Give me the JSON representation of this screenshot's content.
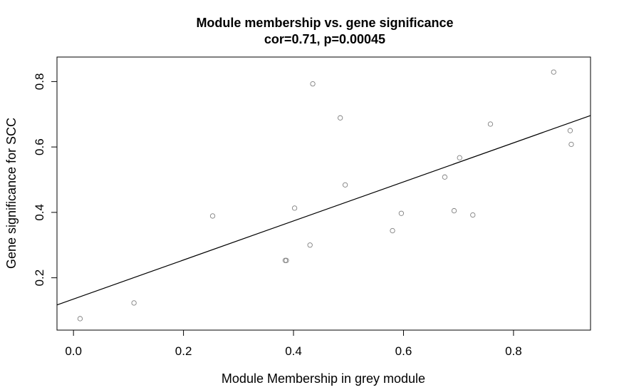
{
  "chart_data": {
    "type": "scatter",
    "title": "Module membership vs. gene significance",
    "subtitle": "cor=0.71, p=0.00045",
    "xlabel": "Module Membership in grey module",
    "ylabel": "Gene significance for SCC",
    "xlim": [
      -0.03,
      0.94
    ],
    "ylim": [
      0.04,
      0.875
    ],
    "xticks": [
      0.0,
      0.2,
      0.4,
      0.6,
      0.8
    ],
    "xtick_labels": [
      "0.0",
      "0.2",
      "0.4",
      "0.6",
      "0.8"
    ],
    "yticks": [
      0.2,
      0.4,
      0.6,
      0.8
    ],
    "ytick_labels": [
      "0.2",
      "0.4",
      "0.6",
      "0.8"
    ],
    "grid": false,
    "legend": "none",
    "marker": "open-circle",
    "point_color": "#808080",
    "line_color": "#000000",
    "points": [
      {
        "x": 0.012,
        "y": 0.075
      },
      {
        "x": 0.11,
        "y": 0.123
      },
      {
        "x": 0.253,
        "y": 0.389
      },
      {
        "x": 0.385,
        "y": 0.253
      },
      {
        "x": 0.387,
        "y": 0.253
      },
      {
        "x": 0.402,
        "y": 0.413
      },
      {
        "x": 0.43,
        "y": 0.3
      },
      {
        "x": 0.435,
        "y": 0.793
      },
      {
        "x": 0.485,
        "y": 0.689
      },
      {
        "x": 0.494,
        "y": 0.484
      },
      {
        "x": 0.58,
        "y": 0.344
      },
      {
        "x": 0.596,
        "y": 0.397
      },
      {
        "x": 0.675,
        "y": 0.508
      },
      {
        "x": 0.692,
        "y": 0.405
      },
      {
        "x": 0.702,
        "y": 0.567
      },
      {
        "x": 0.726,
        "y": 0.392
      },
      {
        "x": 0.758,
        "y": 0.67
      },
      {
        "x": 0.873,
        "y": 0.829
      },
      {
        "x": 0.903,
        "y": 0.65
      },
      {
        "x": 0.905,
        "y": 0.608
      }
    ],
    "fit_line": {
      "intercept": 0.135,
      "slope": 0.597
    }
  }
}
